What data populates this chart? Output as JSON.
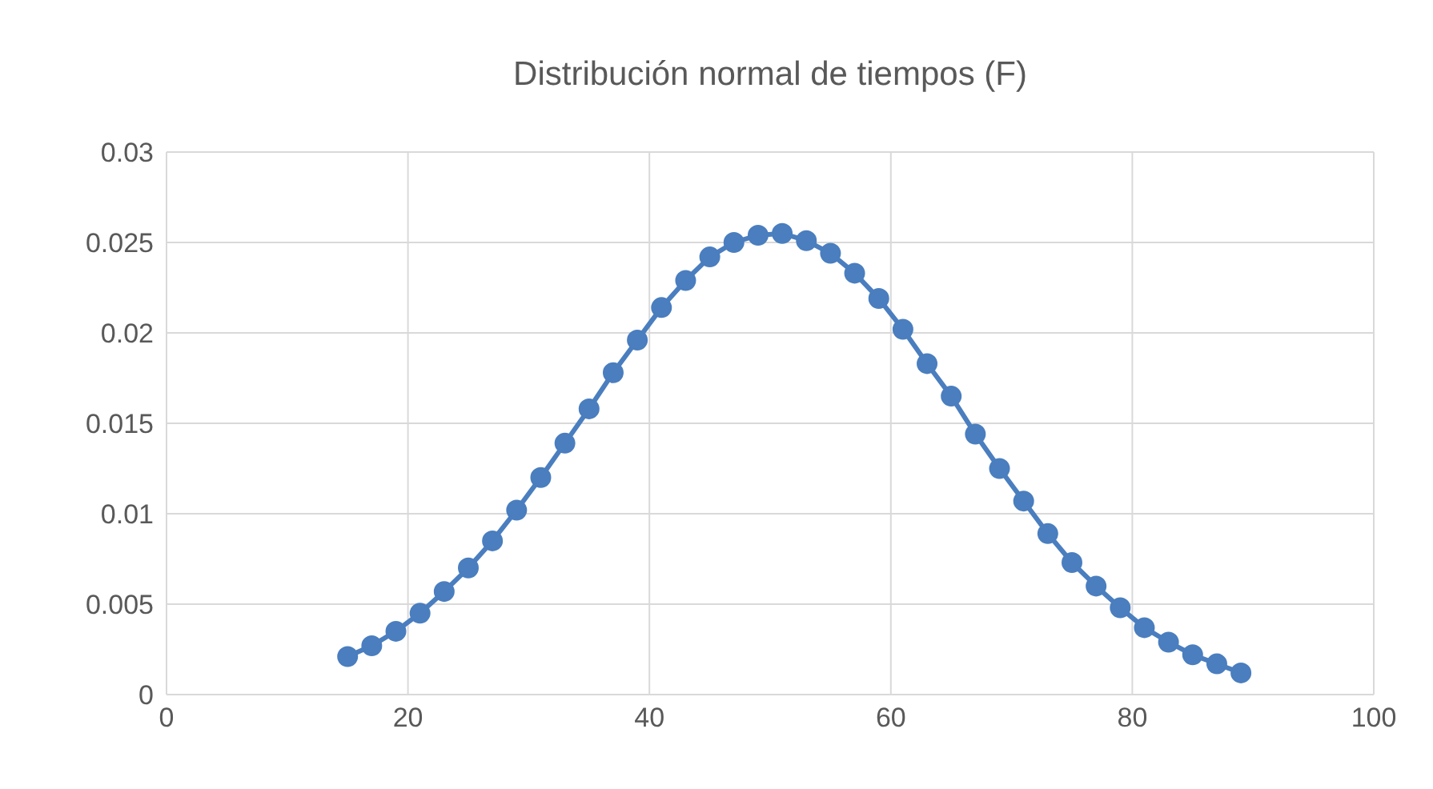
{
  "chart_data": {
    "type": "line",
    "title": "Distribución normal de tiempos (F)",
    "x": [
      15,
      17,
      19,
      21,
      23,
      25,
      27,
      29,
      31,
      33,
      35,
      37,
      39,
      41,
      43,
      45,
      47,
      49,
      51,
      53,
      55,
      57,
      59,
      61,
      63,
      65,
      67,
      69,
      71,
      73,
      75,
      77,
      79,
      81,
      83,
      85,
      87,
      89
    ],
    "series": [
      {
        "color": "#4a7ebf",
        "values": [
          0.0021,
          0.0027,
          0.0035,
          0.0045,
          0.0057,
          0.007,
          0.0085,
          0.0102,
          0.012,
          0.0139,
          0.0158,
          0.0178,
          0.0196,
          0.0214,
          0.0229,
          0.0242,
          0.025,
          0.0254,
          0.0255,
          0.0251,
          0.0244,
          0.0233,
          0.0219,
          0.0202,
          0.0183,
          0.0165,
          0.0144,
          0.0125,
          0.0107,
          0.0089,
          0.0073,
          0.006,
          0.0048,
          0.0037,
          0.0029,
          0.0022,
          0.0017,
          0.0012
        ]
      }
    ],
    "xlim": [
      0,
      100
    ],
    "xticks": [
      0,
      20,
      40,
      60,
      80,
      100
    ],
    "ylim": [
      0,
      0.03
    ],
    "yticks": [
      0,
      0.005,
      0.01,
      0.015,
      0.02,
      0.025,
      0.03
    ],
    "grid": true,
    "legend": false,
    "marker": "circle",
    "line_style": "solid"
  }
}
